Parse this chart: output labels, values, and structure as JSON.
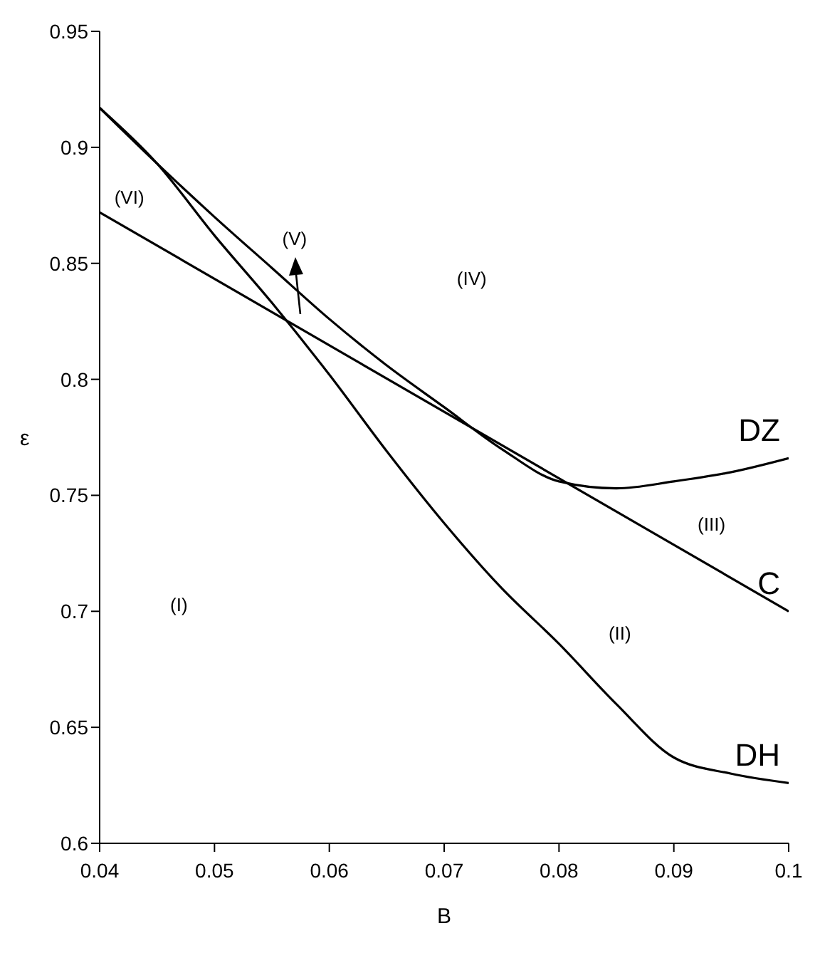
{
  "chart_data": {
    "type": "line",
    "xlabel": "B",
    "ylabel": "ε",
    "x": [
      0.04,
      0.045,
      0.05,
      0.055,
      0.06,
      0.065,
      0.07,
      0.075,
      0.08,
      0.085,
      0.09,
      0.095,
      0.1
    ],
    "series": [
      {
        "name": "DZ",
        "color": "#000000",
        "values": [
          0.917,
          0.893,
          0.87,
          0.848,
          0.826,
          0.806,
          0.788,
          0.77,
          0.756,
          0.753,
          0.756,
          0.76,
          0.766
        ]
      },
      {
        "name": "C",
        "color": "#000000",
        "x": [
          0.04,
          0.1
        ],
        "values": [
          0.872,
          0.7
        ]
      },
      {
        "name": "DH",
        "color": "#000000",
        "values": [
          0.917,
          0.893,
          0.862,
          0.833,
          0.802,
          0.769,
          0.738,
          0.71,
          0.686,
          0.66,
          0.637,
          0.63,
          0.626
        ]
      }
    ],
    "xlim": [
      0.04,
      0.1
    ],
    "xticks": [
      0.04,
      0.05,
      0.06,
      0.07,
      0.08,
      0.09,
      0.1
    ],
    "ylim": [
      0.6,
      0.95
    ],
    "yticks": [
      0.6,
      0.65,
      0.7,
      0.75,
      0.8,
      0.85,
      0.9,
      0.95
    ],
    "marker": "none",
    "line_style": "solid",
    "annotations": [
      "(VI)",
      "(V)",
      "(IV)",
      "(III)",
      "(II)",
      "(I)"
    ]
  }
}
